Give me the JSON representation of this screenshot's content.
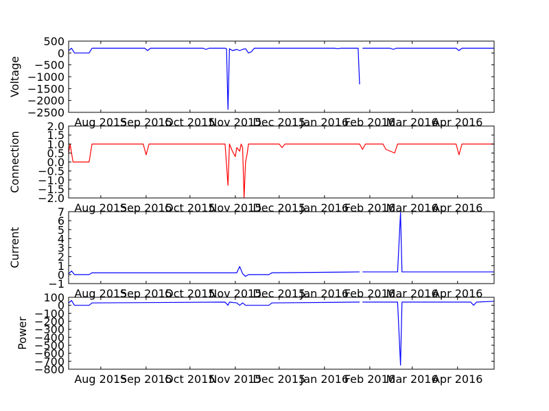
{
  "chart_data": [
    {
      "type": "line",
      "ylabel": "Voltage",
      "ylim": [
        -2500,
        500
      ],
      "yticks": [
        500,
        0,
        -500,
        -1000,
        -1500,
        -2000,
        -2500
      ],
      "ytick_labels": [
        "500",
        "0",
        "−500",
        "−1000",
        "−1500",
        "−2000",
        "−2500"
      ],
      "xlim": [
        "2015-07-10",
        "2016-04-26"
      ],
      "xticks": [
        "2015-08-01",
        "2015-09-01",
        "2015-10-01",
        "2015-11-01",
        "2015-12-01",
        "2016-01-01",
        "2016-02-01",
        "2016-03-01",
        "2016-04-01"
      ],
      "xtick_labels": [
        "Aug 2015",
        "Sep 2015",
        "Oct 2015",
        "Nov 2015",
        "Dec 2015",
        "Jan 2016",
        "Feb 2016",
        "Mar 2016",
        "Apr 2016"
      ],
      "color": "#0000ff",
      "series": [
        {
          "segments": [
            [
              [
                "2015-07-10",
                100
              ],
              [
                "2015-07-12",
                200
              ],
              [
                "2015-07-14",
                0
              ],
              [
                "2015-07-24",
                0
              ],
              [
                "2015-07-26",
                200
              ],
              [
                "2015-08-31",
                200
              ],
              [
                "2015-09-02",
                100
              ],
              [
                "2015-09-04",
                200
              ],
              [
                "2015-10-10",
                200
              ],
              [
                "2015-10-12",
                150
              ],
              [
                "2015-10-14",
                200
              ],
              [
                "2015-10-25",
                200
              ],
              [
                "2015-10-26",
                180
              ],
              [
                "2015-10-27",
                -2380
              ],
              [
                "2015-10-28",
                180
              ],
              [
                "2015-10-30",
                100
              ],
              [
                "2015-11-02",
                150
              ],
              [
                "2015-11-04",
                100
              ],
              [
                "2015-11-06",
                150
              ],
              [
                "2015-11-08",
                180
              ],
              [
                "2015-11-10",
                0
              ],
              [
                "2015-11-12",
                50
              ],
              [
                "2015-11-14",
                200
              ],
              [
                "2016-01-08",
                200
              ],
              [
                "2016-01-10",
                180
              ],
              [
                "2016-01-12",
                200
              ],
              [
                "2016-01-24",
                200
              ],
              [
                "2016-01-25",
                -1320
              ]
            ],
            [
              [
                "2016-01-27",
                200
              ],
              [
                "2016-02-15",
                200
              ],
              [
                "2016-02-17",
                150
              ],
              [
                "2016-02-19",
                200
              ],
              [
                "2016-03-31",
                200
              ],
              [
                "2016-04-02",
                100
              ],
              [
                "2016-04-04",
                200
              ],
              [
                "2016-04-26",
                200
              ]
            ]
          ]
        }
      ]
    },
    {
      "type": "line",
      "ylabel": "Connection",
      "ylim": [
        -2.0,
        2.0
      ],
      "yticks": [
        2.0,
        1.5,
        1.0,
        0.5,
        0.0,
        -0.5,
        -1.0,
        -1.5,
        -2.0
      ],
      "ytick_labels": [
        "2.0",
        "1.5",
        "1.0",
        "0.5",
        "0.0",
        "−0.5",
        "−1.0",
        "−1.5",
        "−2.0"
      ],
      "xlim": [
        "2015-07-10",
        "2016-04-26"
      ],
      "xticks": [
        "2015-08-01",
        "2015-09-01",
        "2015-10-01",
        "2015-11-01",
        "2015-12-01",
        "2016-01-01",
        "2016-02-01",
        "2016-03-01",
        "2016-04-01"
      ],
      "xtick_labels": [
        "Aug 2015",
        "Sep 2015",
        "Oct 2015",
        "Nov 2015",
        "Dec 2015",
        "Jan 2016",
        "Feb 2016",
        "Mar 2016",
        "Apr 2016"
      ],
      "color": "#ff0000",
      "series": [
        {
          "segments": [
            [
              [
                "2015-07-10",
                0.5
              ],
              [
                "2015-07-11",
                1.0
              ],
              [
                "2015-07-13",
                0.0
              ],
              [
                "2015-07-24",
                0.0
              ],
              [
                "2015-07-26",
                1.0
              ],
              [
                "2015-08-30",
                1.0
              ],
              [
                "2015-09-01",
                0.4
              ],
              [
                "2015-09-03",
                1.0
              ],
              [
                "2015-10-25",
                1.0
              ],
              [
                "2015-10-27",
                -1.3
              ],
              [
                "2015-10-28",
                1.0
              ],
              [
                "2015-10-30",
                0.6
              ],
              [
                "2015-11-01",
                0.3
              ],
              [
                "2015-11-02",
                0.8
              ],
              [
                "2015-11-04",
                0.6
              ],
              [
                "2015-11-05",
                1.0
              ],
              [
                "2015-11-06",
                0.8
              ],
              [
                "2015-11-07",
                -2.0
              ],
              [
                "2015-11-08",
                0.0
              ],
              [
                "2015-11-09",
                0.4
              ],
              [
                "2015-11-10",
                1.0
              ],
              [
                "2015-12-01",
                1.0
              ],
              [
                "2015-12-03",
                0.8
              ],
              [
                "2015-12-05",
                1.0
              ],
              [
                "2016-01-25",
                1.0
              ],
              [
                "2016-01-27",
                0.7
              ],
              [
                "2016-01-29",
                1.0
              ],
              [
                "2016-02-10",
                1.0
              ],
              [
                "2016-02-12",
                0.7
              ],
              [
                "2016-02-18",
                0.5
              ],
              [
                "2016-02-20",
                1.0
              ],
              [
                "2016-03-31",
                1.0
              ],
              [
                "2016-04-02",
                0.4
              ],
              [
                "2016-04-04",
                1.0
              ],
              [
                "2016-04-26",
                1.0
              ]
            ]
          ]
        }
      ]
    },
    {
      "type": "line",
      "ylabel": "Current",
      "ylim": [
        -1,
        7
      ],
      "yticks": [
        7,
        6,
        5,
        4,
        3,
        2,
        1,
        0,
        -1
      ],
      "ytick_labels": [
        "7",
        "6",
        "5",
        "4",
        "3",
        "2",
        "1",
        "0",
        "−1"
      ],
      "xlim": [
        "2015-07-10",
        "2016-04-26"
      ],
      "xticks": [
        "2015-08-01",
        "2015-09-01",
        "2015-10-01",
        "2015-11-01",
        "2015-12-01",
        "2016-01-01",
        "2016-02-01",
        "2016-03-01",
        "2016-04-01"
      ],
      "xtick_labels": [
        "Aug 2015",
        "Sep 2015",
        "Oct 2015",
        "Nov 2015",
        "Dec 2015",
        "Jan 2016",
        "Feb 2016",
        "Mar 2016",
        "Apr 2016"
      ],
      "color": "#0000ff",
      "series": [
        {
          "segments": [
            [
              [
                "2015-07-10",
                0.1
              ],
              [
                "2015-07-12",
                0.4
              ],
              [
                "2015-07-14",
                0.0
              ],
              [
                "2015-07-24",
                0.0
              ],
              [
                "2015-07-26",
                0.2
              ],
              [
                "2015-11-02",
                0.2
              ],
              [
                "2015-11-04",
                0.9
              ],
              [
                "2015-11-06",
                0.1
              ],
              [
                "2015-11-08",
                -0.2
              ],
              [
                "2015-11-10",
                0.0
              ],
              [
                "2015-11-24",
                0.0
              ],
              [
                "2015-11-26",
                0.2
              ],
              [
                "2016-01-25",
                0.3
              ]
            ],
            [
              [
                "2016-01-27",
                0.3
              ],
              [
                "2016-02-20",
                0.3
              ],
              [
                "2016-02-22",
                6.9
              ],
              [
                "2016-02-23",
                0.3
              ],
              [
                "2016-04-26",
                0.3
              ]
            ]
          ]
        }
      ]
    },
    {
      "type": "line",
      "ylabel": "Power",
      "ylim": [
        -800,
        100
      ],
      "yticks": [
        100,
        0,
        -100,
        -200,
        -300,
        -400,
        -500,
        -600,
        -700,
        -800
      ],
      "ytick_labels": [
        "100",
        "0",
        "−100",
        "−200",
        "−300",
        "−400",
        "−500",
        "−600",
        "−700",
        "−800"
      ],
      "xlim": [
        "2015-07-10",
        "2016-04-26"
      ],
      "xticks": [
        "2015-08-01",
        "2015-09-01",
        "2015-10-01",
        "2015-11-01",
        "2015-12-01",
        "2016-01-01",
        "2016-02-01",
        "2016-03-01",
        "2016-04-01"
      ],
      "xtick_labels": [
        "Aug 2015",
        "Sep 2015",
        "Oct 2015",
        "Nov 2015",
        "Dec 2015",
        "Jan 2016",
        "Feb 2016",
        "Mar 2016",
        "Apr 2016"
      ],
      "color": "#0000ff",
      "series": [
        {
          "segments": [
            [
              [
                "2015-07-10",
                30
              ],
              [
                "2015-07-12",
                60
              ],
              [
                "2015-07-14",
                0
              ],
              [
                "2015-07-24",
                0
              ],
              [
                "2015-07-26",
                30
              ],
              [
                "2015-10-25",
                40
              ],
              [
                "2015-10-27",
                0
              ],
              [
                "2015-10-28",
                40
              ],
              [
                "2015-11-02",
                30
              ],
              [
                "2015-11-04",
                0
              ],
              [
                "2015-11-06",
                30
              ],
              [
                "2015-11-08",
                0
              ],
              [
                "2015-11-24",
                0
              ],
              [
                "2015-11-26",
                30
              ],
              [
                "2016-01-25",
                40
              ]
            ],
            [
              [
                "2016-01-27",
                40
              ],
              [
                "2016-02-20",
                40
              ],
              [
                "2016-02-22",
                -750
              ],
              [
                "2016-02-23",
                40
              ],
              [
                "2016-04-10",
                40
              ],
              [
                "2016-04-12",
                0
              ],
              [
                "2016-04-14",
                40
              ],
              [
                "2016-04-26",
                50
              ]
            ]
          ]
        }
      ]
    }
  ]
}
